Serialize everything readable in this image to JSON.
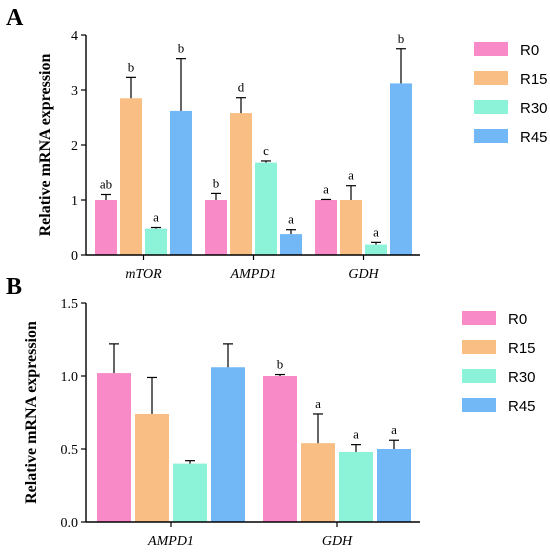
{
  "colors": {
    "R0": "#f78ac7",
    "R15": "#f9be83",
    "R30": "#8cf2d8",
    "R45": "#72b8f6"
  },
  "chart_data": [
    {
      "panel_label": "A",
      "type": "bar",
      "ylabel": "Relative mRNA expression",
      "ylim": [
        0,
        4
      ],
      "yticks": [
        "0",
        "1",
        "2",
        "3",
        "4"
      ],
      "categories": [
        "mTOR",
        "AMPD1",
        "GDH"
      ],
      "legend_position": "right",
      "series": [
        {
          "name": "R0",
          "values": [
            1.0,
            1.0,
            1.0
          ],
          "errors": [
            0.1,
            0.12,
            0.01
          ],
          "labels": [
            "ab",
            "b",
            "a"
          ]
        },
        {
          "name": "R15",
          "values": [
            2.85,
            2.58,
            1.0
          ],
          "errors": [
            0.38,
            0.28,
            0.26
          ],
          "labels": [
            "b",
            "d",
            "a"
          ]
        },
        {
          "name": "R30",
          "values": [
            0.48,
            1.68,
            0.19
          ],
          "errors": [
            0.02,
            0.03,
            0.04
          ],
          "labels": [
            "a",
            "c",
            "a"
          ]
        },
        {
          "name": "R45",
          "values": [
            2.62,
            0.38,
            3.12
          ],
          "errors": [
            0.95,
            0.08,
            0.63
          ],
          "labels": [
            "b",
            "a",
            "b"
          ]
        }
      ]
    },
    {
      "panel_label": "B",
      "type": "bar",
      "ylabel": "Relative mRNA expression",
      "ylim": [
        0,
        1.5
      ],
      "yticks": [
        "0.0",
        "0.5",
        "1.0",
        "1.5"
      ],
      "categories": [
        "AMPD1",
        "GDH"
      ],
      "legend_position": "right",
      "series": [
        {
          "name": "R0",
          "values": [
            1.02,
            1.0
          ],
          "errors": [
            0.2,
            0.01
          ],
          "labels": [
            "",
            "b"
          ]
        },
        {
          "name": "R15",
          "values": [
            0.74,
            0.54
          ],
          "errors": [
            0.25,
            0.2
          ],
          "labels": [
            "",
            "a"
          ]
        },
        {
          "name": "R30",
          "values": [
            0.4,
            0.48
          ],
          "errors": [
            0.02,
            0.05
          ],
          "labels": [
            "",
            "a"
          ]
        },
        {
          "name": "R45",
          "values": [
            1.06,
            0.5
          ],
          "errors": [
            0.16,
            0.06
          ],
          "labels": [
            "",
            "a"
          ]
        }
      ]
    }
  ]
}
